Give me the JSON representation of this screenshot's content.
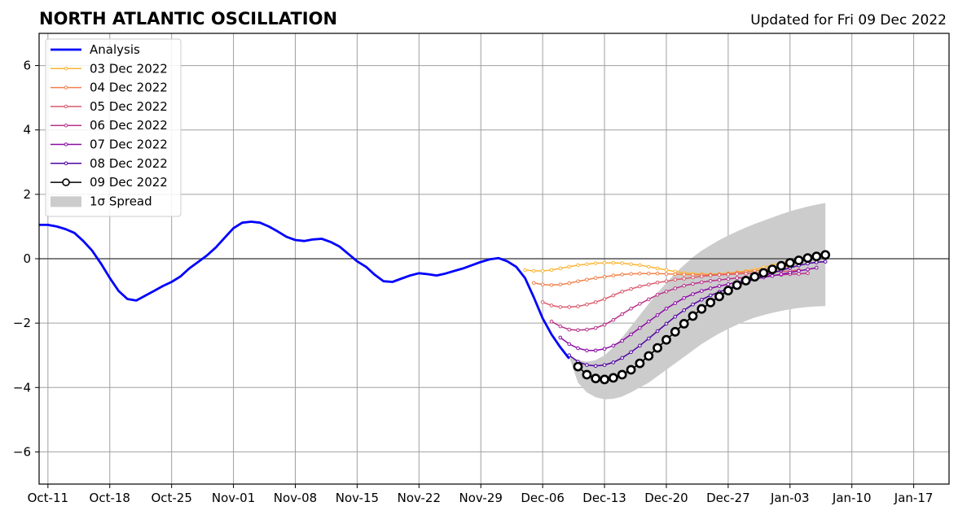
{
  "chart_data": {
    "type": "line",
    "title": "NORTH ATLANTIC OSCILLATION",
    "subtitle": "Updated for Fri 09 Dec 2022",
    "xlabel": "",
    "ylabel": "",
    "xlim": [
      "2022-10-10",
      "2023-01-21"
    ],
    "ylim": [
      -7,
      7
    ],
    "x_ticks": [
      {
        "date": "2022-10-11",
        "label": "Oct-11"
      },
      {
        "date": "2022-10-18",
        "label": "Oct-18"
      },
      {
        "date": "2022-10-25",
        "label": "Oct-25"
      },
      {
        "date": "2022-11-01",
        "label": "Nov-01"
      },
      {
        "date": "2022-11-08",
        "label": "Nov-08"
      },
      {
        "date": "2022-11-15",
        "label": "Nov-15"
      },
      {
        "date": "2022-11-22",
        "label": "Nov-22"
      },
      {
        "date": "2022-11-29",
        "label": "Nov-29"
      },
      {
        "date": "2022-12-06",
        "label": "Dec-06"
      },
      {
        "date": "2022-12-13",
        "label": "Dec-13"
      },
      {
        "date": "2022-12-20",
        "label": "Dec-20"
      },
      {
        "date": "2022-12-27",
        "label": "Dec-27"
      },
      {
        "date": "2023-01-03",
        "label": "Jan-03"
      },
      {
        "date": "2023-01-10",
        "label": "Jan-10"
      },
      {
        "date": "2023-01-17",
        "label": "Jan-17"
      }
    ],
    "y_ticks": [
      {
        "value": -6,
        "label": "−6"
      },
      {
        "value": -4,
        "label": "−4"
      },
      {
        "value": -2,
        "label": "−2"
      },
      {
        "value": 0,
        "label": "0"
      },
      {
        "value": 2,
        "label": "2"
      },
      {
        "value": 4,
        "label": "4"
      },
      {
        "value": 6,
        "label": "6"
      }
    ],
    "grid": true,
    "legend_position": "top-left",
    "zero_line": true,
    "analysis": {
      "name": "Analysis",
      "color": "#0000ff",
      "start_date": "2022-10-10",
      "values": [
        1.05,
        1.05,
        1.0,
        0.92,
        0.8,
        0.55,
        0.25,
        -0.15,
        -0.6,
        -1.0,
        -1.25,
        -1.3,
        -1.15,
        -1.0,
        -0.85,
        -0.72,
        -0.55,
        -0.3,
        -0.1,
        0.1,
        0.35,
        0.65,
        0.95,
        1.12,
        1.15,
        1.12,
        1.0,
        0.85,
        0.68,
        0.58,
        0.55,
        0.6,
        0.62,
        0.52,
        0.38,
        0.15,
        -0.08,
        -0.25,
        -0.5,
        -0.7,
        -0.72,
        -0.62,
        -0.52,
        -0.45,
        -0.48,
        -0.52,
        -0.46,
        -0.38,
        -0.3,
        -0.2,
        -0.1,
        -0.02,
        0.02,
        -0.08,
        -0.25,
        -0.6,
        -1.2,
        -1.85,
        -2.35,
        -2.75,
        -3.1
      ]
    },
    "series": [
      {
        "name": "03 Dec 2022",
        "color": "#fbb535",
        "start_date": "2022-12-04",
        "values": [
          -0.35,
          -0.38,
          -0.38,
          -0.35,
          -0.3,
          -0.25,
          -0.2,
          -0.17,
          -0.14,
          -0.13,
          -0.13,
          -0.14,
          -0.17,
          -0.2,
          -0.25,
          -0.3,
          -0.35,
          -0.4,
          -0.44,
          -0.46,
          -0.48,
          -0.48,
          -0.47,
          -0.45,
          -0.42,
          -0.38,
          -0.33,
          -0.27,
          -0.2,
          -0.13,
          -0.07
        ]
      },
      {
        "name": "04 Dec 2022",
        "color": "#f0804b",
        "start_date": "2022-12-05",
        "values": [
          -0.75,
          -0.8,
          -0.82,
          -0.8,
          -0.76,
          -0.7,
          -0.65,
          -0.6,
          -0.56,
          -0.52,
          -0.49,
          -0.47,
          -0.46,
          -0.46,
          -0.46,
          -0.47,
          -0.48,
          -0.49,
          -0.5,
          -0.5,
          -0.5,
          -0.49,
          -0.47,
          -0.44,
          -0.41,
          -0.38,
          -0.34,
          -0.3,
          -0.26,
          -0.22
        ]
      },
      {
        "name": "05 Dec 2022",
        "color": "#da5b6c",
        "start_date": "2022-12-06",
        "values": [
          -1.35,
          -1.45,
          -1.5,
          -1.5,
          -1.48,
          -1.42,
          -1.35,
          -1.25,
          -1.14,
          -1.02,
          -0.94,
          -0.86,
          -0.8,
          -0.74,
          -0.7,
          -0.65,
          -0.62,
          -0.58,
          -0.55,
          -0.52,
          -0.5,
          -0.49,
          -0.47,
          -0.46,
          -0.45,
          -0.44,
          -0.42,
          -0.4,
          -0.38,
          -0.35
        ]
      },
      {
        "name": "06 Dec 2022",
        "color": "#b83289",
        "start_date": "2022-12-07",
        "values": [
          -1.95,
          -2.1,
          -2.2,
          -2.22,
          -2.2,
          -2.15,
          -2.05,
          -1.9,
          -1.72,
          -1.55,
          -1.4,
          -1.26,
          -1.12,
          -1.02,
          -0.92,
          -0.84,
          -0.78,
          -0.73,
          -0.69,
          -0.66,
          -0.63,
          -0.6,
          -0.58,
          -0.56,
          -0.54,
          -0.52,
          -0.5,
          -0.48,
          -0.47,
          -0.45
        ]
      },
      {
        "name": "07 Dec 2022",
        "color": "#8b0aa5",
        "start_date": "2022-12-08",
        "values": [
          -2.45,
          -2.65,
          -2.78,
          -2.85,
          -2.85,
          -2.8,
          -2.7,
          -2.55,
          -2.35,
          -2.15,
          -1.95,
          -1.75,
          -1.55,
          -1.38,
          -1.22,
          -1.1,
          -1.0,
          -0.92,
          -0.85,
          -0.79,
          -0.73,
          -0.68,
          -0.63,
          -0.58,
          -0.53,
          -0.48,
          -0.43,
          -0.38,
          -0.33,
          -0.28
        ]
      },
      {
        "name": "08 Dec 2022",
        "color": "#5002a2",
        "start_date": "2022-12-09",
        "values": [
          -3.0,
          -3.2,
          -3.3,
          -3.33,
          -3.3,
          -3.22,
          -3.08,
          -2.9,
          -2.7,
          -2.48,
          -2.25,
          -2.02,
          -1.8,
          -1.6,
          -1.42,
          -1.27,
          -1.14,
          -1.03,
          -0.93,
          -0.83,
          -0.73,
          -0.63,
          -0.53,
          -0.44,
          -0.36,
          -0.28,
          -0.21,
          -0.15,
          -0.11,
          -0.09
        ]
      },
      {
        "name": "09 Dec 2022",
        "color": "#000000",
        "start_date": "2022-12-10",
        "values": [
          -3.35,
          -3.6,
          -3.72,
          -3.75,
          -3.7,
          -3.6,
          -3.45,
          -3.25,
          -3.02,
          -2.77,
          -2.52,
          -2.27,
          -2.02,
          -1.78,
          -1.56,
          -1.36,
          -1.17,
          -0.99,
          -0.82,
          -0.68,
          -0.56,
          -0.44,
          -0.33,
          -0.22,
          -0.13,
          -0.05,
          0.02,
          0.07,
          0.12
        ]
      }
    ],
    "spread": {
      "name": "1σ Spread",
      "color": "#cccccc",
      "start_date": "2022-12-09",
      "upper": [
        -3.0,
        -3.15,
        -3.2,
        -3.15,
        -3.0,
        -2.75,
        -2.45,
        -2.1,
        -1.75,
        -1.4,
        -1.05,
        -0.75,
        -0.45,
        -0.2,
        0.05,
        0.25,
        0.42,
        0.58,
        0.72,
        0.85,
        0.97,
        1.08,
        1.18,
        1.28,
        1.38,
        1.47,
        1.55,
        1.62,
        1.68,
        1.73
      ],
      "lower": [
        -3.05,
        -3.85,
        -4.15,
        -4.3,
        -4.37,
        -4.35,
        -4.28,
        -4.15,
        -4.0,
        -3.85,
        -3.65,
        -3.45,
        -3.25,
        -3.05,
        -2.85,
        -2.65,
        -2.48,
        -2.32,
        -2.18,
        -2.05,
        -1.93,
        -1.83,
        -1.75,
        -1.68,
        -1.62,
        -1.57,
        -1.53,
        -1.5,
        -1.48,
        -1.47
      ]
    }
  }
}
